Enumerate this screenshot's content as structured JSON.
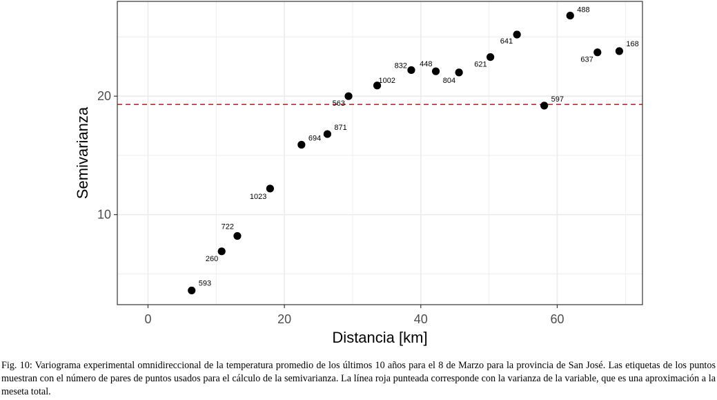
{
  "chart_data": {
    "type": "scatter",
    "xlabel": "Distancia [km]",
    "ylabel": "Semivarianza",
    "xlim": [
      -4.5,
      72.5
    ],
    "ylim": [
      2.4,
      28.0
    ],
    "x_ticks": [
      0,
      20,
      40,
      60
    ],
    "y_ticks": [
      10,
      20
    ],
    "grid": true,
    "points": [
      {
        "x": 6.4,
        "y": 3.6,
        "label": "593"
      },
      {
        "x": 10.8,
        "y": 6.9,
        "label": "260"
      },
      {
        "x": 13.1,
        "y": 8.2,
        "label": "722"
      },
      {
        "x": 17.9,
        "y": 12.2,
        "label": "1023"
      },
      {
        "x": 22.5,
        "y": 15.9,
        "label": "694"
      },
      {
        "x": 26.3,
        "y": 16.8,
        "label": "871"
      },
      {
        "x": 29.4,
        "y": 20.0,
        "label": "563"
      },
      {
        "x": 33.6,
        "y": 20.9,
        "label": "1002"
      },
      {
        "x": 38.6,
        "y": 22.2,
        "label": "832"
      },
      {
        "x": 42.2,
        "y": 22.1,
        "label": "448"
      },
      {
        "x": 45.6,
        "y": 22.0,
        "label": "804"
      },
      {
        "x": 50.2,
        "y": 23.3,
        "label": "621"
      },
      {
        "x": 54.1,
        "y": 25.2,
        "label": "641"
      },
      {
        "x": 58.1,
        "y": 19.2,
        "label": "597"
      },
      {
        "x": 61.9,
        "y": 26.8,
        "label": "488"
      },
      {
        "x": 65.9,
        "y": 23.7,
        "label": "637"
      },
      {
        "x": 69.1,
        "y": 23.8,
        "label": "168"
      }
    ],
    "hline": {
      "y": 19.3,
      "color": "#e41a1c",
      "style": "dashed"
    },
    "point_color": "#000000",
    "panel_border_color": "#333333",
    "grid_color": "#ebebeb"
  },
  "caption": "Fig. 10: Variograma experimental omnidireccional de la temperatura promedio de los últimos 10 años para el 8 de Marzo para la provincia de San José. Las etiquetas de los puntos muestran con el número de pares de puntos usados para el cálculo de la semivarianza. La línea roja punteada corresponde con la varianza de la variable, que es una aproximación a la meseta total."
}
